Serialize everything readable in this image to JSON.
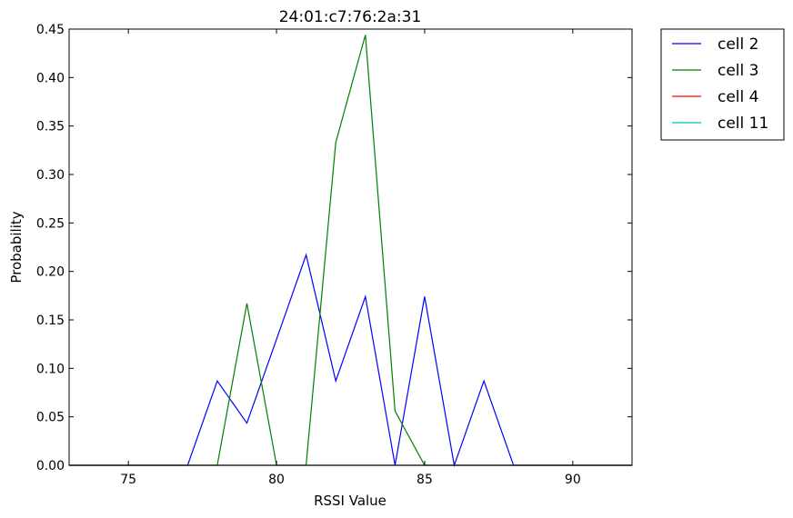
{
  "chart_data": {
    "type": "line",
    "title": "24:01:c7:76:2a:31",
    "xlabel": "RSSI Value",
    "ylabel": "Probability",
    "xlim": [
      73,
      92
    ],
    "ylim": [
      0,
      0.45
    ],
    "x_ticks": [
      75,
      80,
      85,
      90
    ],
    "y_ticks": [
      0.0,
      0.05,
      0.1,
      0.15,
      0.2,
      0.25,
      0.3,
      0.35,
      0.4,
      0.45
    ],
    "x_tick_labels": [
      "75",
      "80",
      "85",
      "90"
    ],
    "y_tick_labels": [
      "0.00",
      "0.05",
      "0.10",
      "0.15",
      "0.20",
      "0.25",
      "0.30",
      "0.35",
      "0.40",
      "0.45"
    ],
    "grid": false,
    "legend_position": "outside-top-right",
    "series": [
      {
        "name": "cell 2",
        "color": "#0000ff",
        "x": [
          73,
          77,
          78,
          79,
          80,
          81,
          82,
          83,
          84,
          85,
          86,
          87,
          88,
          92
        ],
        "y": [
          0,
          0,
          0.087,
          0.0435,
          0.13,
          0.217,
          0.087,
          0.174,
          0,
          0.174,
          0,
          0.087,
          0,
          0
        ]
      },
      {
        "name": "cell 3",
        "color": "#008000",
        "x": [
          73,
          78,
          79,
          80,
          81,
          82,
          83,
          84,
          85,
          92
        ],
        "y": [
          0,
          0,
          0.167,
          0,
          0,
          0.333,
          0.444,
          0.056,
          0,
          0
        ]
      },
      {
        "name": "cell 4",
        "color": "#ff0000",
        "x": [
          73,
          92
        ],
        "y": [
          0,
          0
        ]
      },
      {
        "name": "cell 11",
        "color": "#00bfbf",
        "x": [
          73,
          92
        ],
        "y": [
          0,
          0
        ]
      }
    ]
  }
}
